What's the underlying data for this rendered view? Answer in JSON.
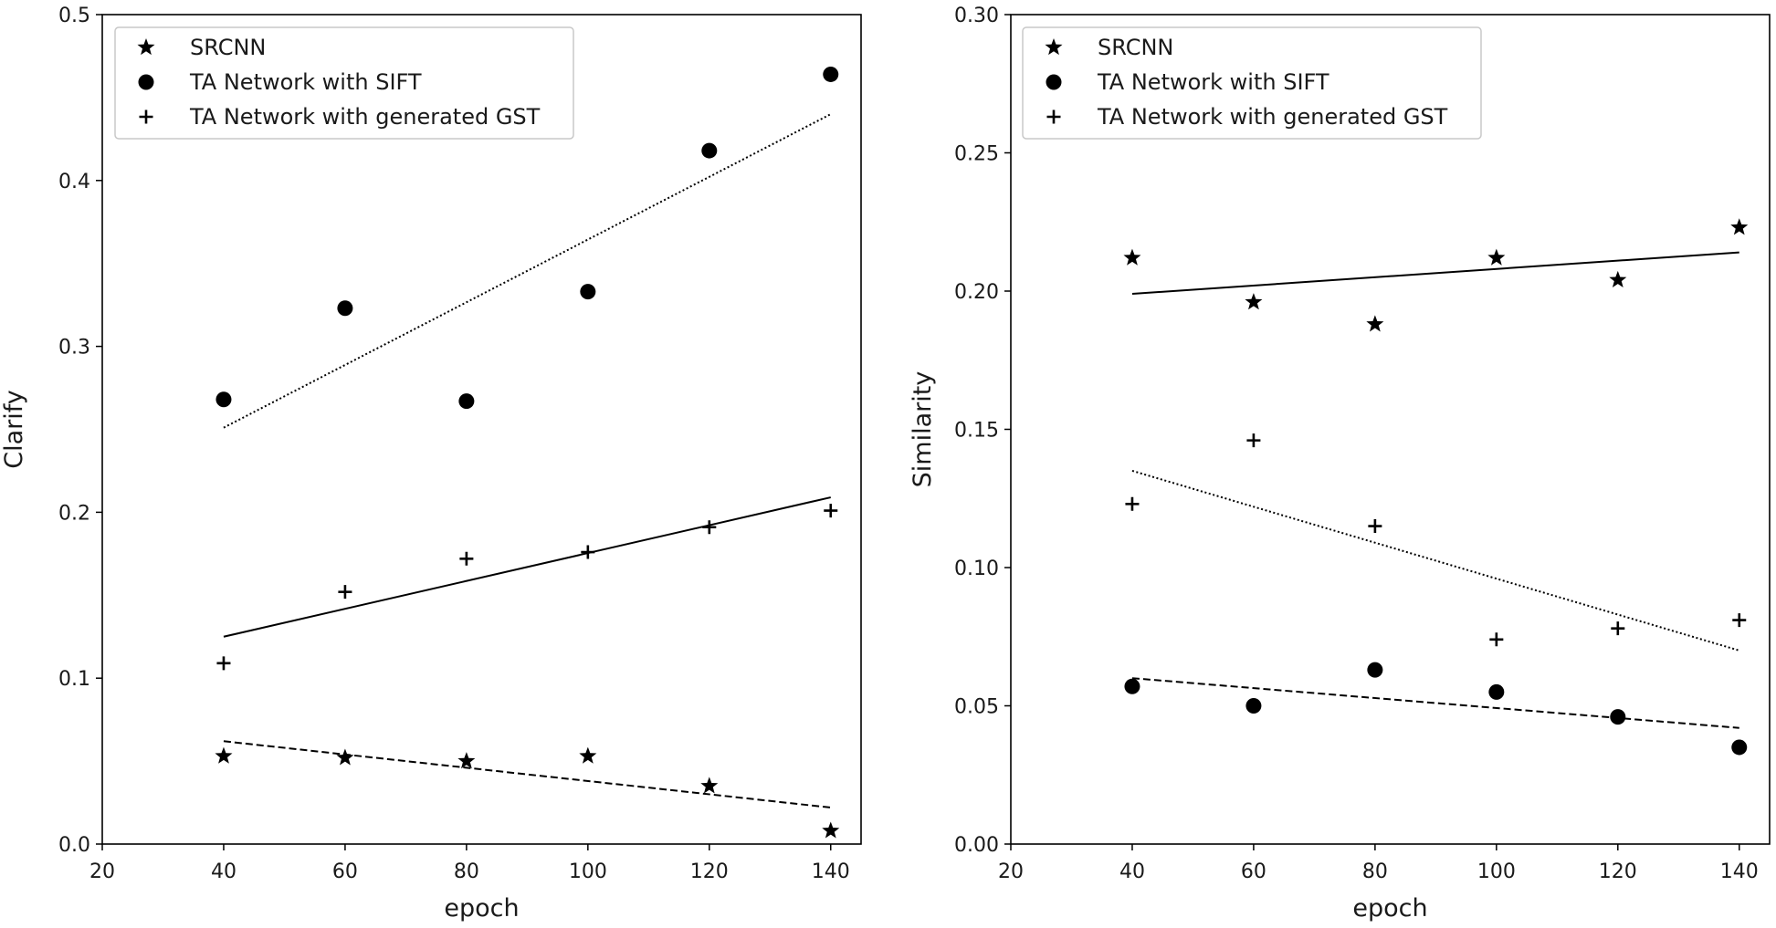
{
  "chart_data": [
    {
      "type": "scatter",
      "title": "",
      "xlabel": "epoch",
      "ylabel": "Clarify",
      "xlim": [
        20,
        145
      ],
      "ylim": [
        0.0,
        0.5
      ],
      "xticks": [
        20,
        40,
        60,
        80,
        100,
        120,
        140
      ],
      "xtick_labels": [
        "20",
        "40",
        "60",
        "80",
        "100",
        "120",
        "140"
      ],
      "yticks": [
        0.0,
        0.1,
        0.2,
        0.3,
        0.4,
        0.5
      ],
      "ytick_labels": [
        "0.0",
        "0.1",
        "0.2",
        "0.3",
        "0.4",
        "0.5"
      ],
      "legend_position": "top-left",
      "grid": false,
      "series": [
        {
          "name": "SRCNN",
          "marker": "star",
          "x": [
            40,
            60,
            80,
            100,
            120,
            140
          ],
          "y": [
            0.053,
            0.052,
            0.05,
            0.053,
            0.035,
            0.008
          ],
          "trend": {
            "x": [
              40,
              140
            ],
            "y": [
              0.062,
              0.022
            ],
            "style": "dashed"
          }
        },
        {
          "name": "TA Network with SIFT",
          "marker": "circle",
          "x": [
            40,
            60,
            80,
            100,
            120,
            140
          ],
          "y": [
            0.268,
            0.323,
            0.267,
            0.333,
            0.418,
            0.464
          ],
          "trend": {
            "x": [
              40,
              140
            ],
            "y": [
              0.251,
              0.44
            ],
            "style": "dotted"
          }
        },
        {
          "name": "TA Network with generated GST",
          "marker": "plus",
          "x": [
            40,
            60,
            80,
            100,
            120,
            140
          ],
          "y": [
            0.109,
            0.152,
            0.172,
            0.176,
            0.191,
            0.201
          ],
          "trend": {
            "x": [
              40,
              140
            ],
            "y": [
              0.125,
              0.209
            ],
            "style": "solid"
          }
        }
      ]
    },
    {
      "type": "scatter",
      "title": "",
      "xlabel": "epoch",
      "ylabel": "Similarity",
      "xlim": [
        20,
        145
      ],
      "ylim": [
        0.0,
        0.3
      ],
      "xticks": [
        20,
        40,
        60,
        80,
        100,
        120,
        140
      ],
      "xtick_labels": [
        "20",
        "40",
        "60",
        "80",
        "100",
        "120",
        "140"
      ],
      "yticks": [
        0.0,
        0.05,
        0.1,
        0.15,
        0.2,
        0.25,
        0.3
      ],
      "ytick_labels": [
        "0.00",
        "0.05",
        "0.10",
        "0.15",
        "0.20",
        "0.25",
        "0.30"
      ],
      "legend_position": "top-left",
      "grid": false,
      "series": [
        {
          "name": "SRCNN",
          "marker": "star",
          "x": [
            40,
            60,
            80,
            100,
            120,
            140
          ],
          "y": [
            0.212,
            0.196,
            0.188,
            0.212,
            0.204,
            0.223
          ],
          "trend": {
            "x": [
              40,
              140
            ],
            "y": [
              0.199,
              0.214
            ],
            "style": "solid"
          }
        },
        {
          "name": "TA Network with SIFT",
          "marker": "circle",
          "x": [
            40,
            60,
            80,
            100,
            120,
            140
          ],
          "y": [
            0.057,
            0.05,
            0.063,
            0.055,
            0.046,
            0.035
          ],
          "trend": {
            "x": [
              40,
              140
            ],
            "y": [
              0.06,
              0.042
            ],
            "style": "dashed"
          }
        },
        {
          "name": "TA Network with generated GST",
          "marker": "plus",
          "x": [
            40,
            60,
            80,
            100,
            120,
            140
          ],
          "y": [
            0.123,
            0.146,
            0.115,
            0.074,
            0.078,
            0.081
          ],
          "trend": {
            "x": [
              40,
              140
            ],
            "y": [
              0.135,
              0.07
            ],
            "style": "dotted"
          }
        }
      ]
    }
  ]
}
